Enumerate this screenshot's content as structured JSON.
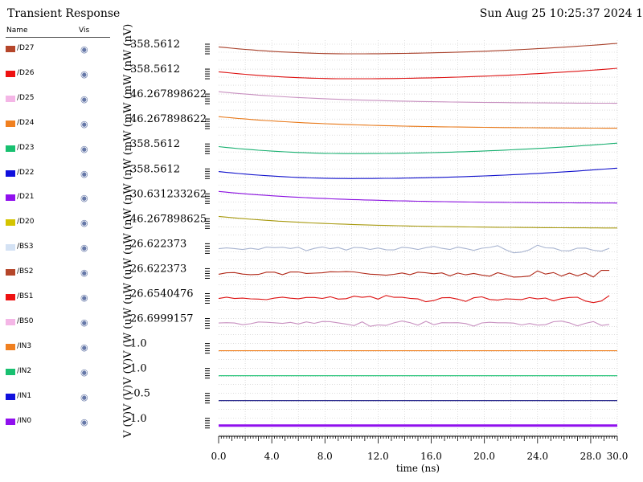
{
  "header": {
    "title": "Transient Response",
    "date": "Sun Aug 25 10:25:37 2024  1"
  },
  "legend": {
    "name_header": "Name",
    "vis_header": "Vis",
    "items": [
      {
        "name": "/D27",
        "color": "#b5462a"
      },
      {
        "name": "/D26",
        "color": "#ee1111"
      },
      {
        "name": "/D25",
        "color": "#f4b6e6"
      },
      {
        "name": "/D24",
        "color": "#f08020"
      },
      {
        "name": "/D23",
        "color": "#18c070"
      },
      {
        "name": "/D22",
        "color": "#1010dd"
      },
      {
        "name": "/D21",
        "color": "#9010ee"
      },
      {
        "name": "/D20",
        "color": "#d4c400"
      },
      {
        "name": "/BS3",
        "color": "#d4e2f4"
      },
      {
        "name": "/BS2",
        "color": "#b5462a"
      },
      {
        "name": "/BS1",
        "color": "#ee1111"
      },
      {
        "name": "/BS0",
        "color": "#f4b6e6"
      },
      {
        "name": "/IN3",
        "color": "#f08020"
      },
      {
        "name": "/IN2",
        "color": "#18c070"
      },
      {
        "name": "/IN1",
        "color": "#1010dd"
      },
      {
        "name": "/IN0",
        "color": "#9010ee"
      }
    ]
  },
  "chart_data": {
    "type": "line",
    "title": "Transient Response",
    "xlabel": "time (ns)",
    "ylabel": "V (V)V (V)V (V)V (W (uW (uW (uW (uW (nW (nW (nW (mW (mW (mW (nW (nV)",
    "xlim": [
      0,
      30
    ],
    "x_ticks": [
      "0.0",
      "4.0",
      "8.0",
      "12.0",
      "16.0",
      "20.0",
      "24.0",
      "28.0",
      "30.0"
    ],
    "grid": true,
    "stacked_strips": true,
    "series": [
      {
        "name": "/D27",
        "color": "#a8402a",
        "label": "358.5612",
        "shape": "dip"
      },
      {
        "name": "/D26",
        "color": "#dd1111",
        "label": "358.5612",
        "shape": "dip"
      },
      {
        "name": "/D25",
        "color": "#c890c0",
        "label": "46.267898622",
        "shape": "decay"
      },
      {
        "name": "/D24",
        "color": "#e87818",
        "label": "46.267898622",
        "shape": "decay"
      },
      {
        "name": "/D23",
        "color": "#18b070",
        "label": "358.5612",
        "shape": "dip"
      },
      {
        "name": "/D22",
        "color": "#1010cc",
        "label": "358.5612",
        "shape": "dip"
      },
      {
        "name": "/D21",
        "color": "#8a10e0",
        "label": "30.631233262",
        "shape": "decay"
      },
      {
        "name": "/D20",
        "color": "#a89a10",
        "label": "46.267898625",
        "shape": "decay"
      },
      {
        "name": "/BS3",
        "color": "#a8b4d0",
        "label": "26.622373",
        "shape": "noise"
      },
      {
        "name": "/BS2",
        "color": "#b02818",
        "label": "26.622373",
        "shape": "noise"
      },
      {
        "name": "/BS1",
        "color": "#dd1111",
        "label": "26.6540476",
        "shape": "noise"
      },
      {
        "name": "/BS0",
        "color": "#c890c0",
        "label": "26.6999157",
        "shape": "noise"
      },
      {
        "name": "/IN3",
        "color": "#f08020",
        "label": "1.0",
        "shape": "flat"
      },
      {
        "name": "/IN2",
        "color": "#18c070",
        "label": "1.0",
        "shape": "flat"
      },
      {
        "name": "/IN1",
        "color": "#101080",
        "label": "-0.5",
        "shape": "flat"
      },
      {
        "name": "/IN0",
        "color": "#9010ee",
        "label": "1.0",
        "shape": "flat"
      }
    ]
  }
}
